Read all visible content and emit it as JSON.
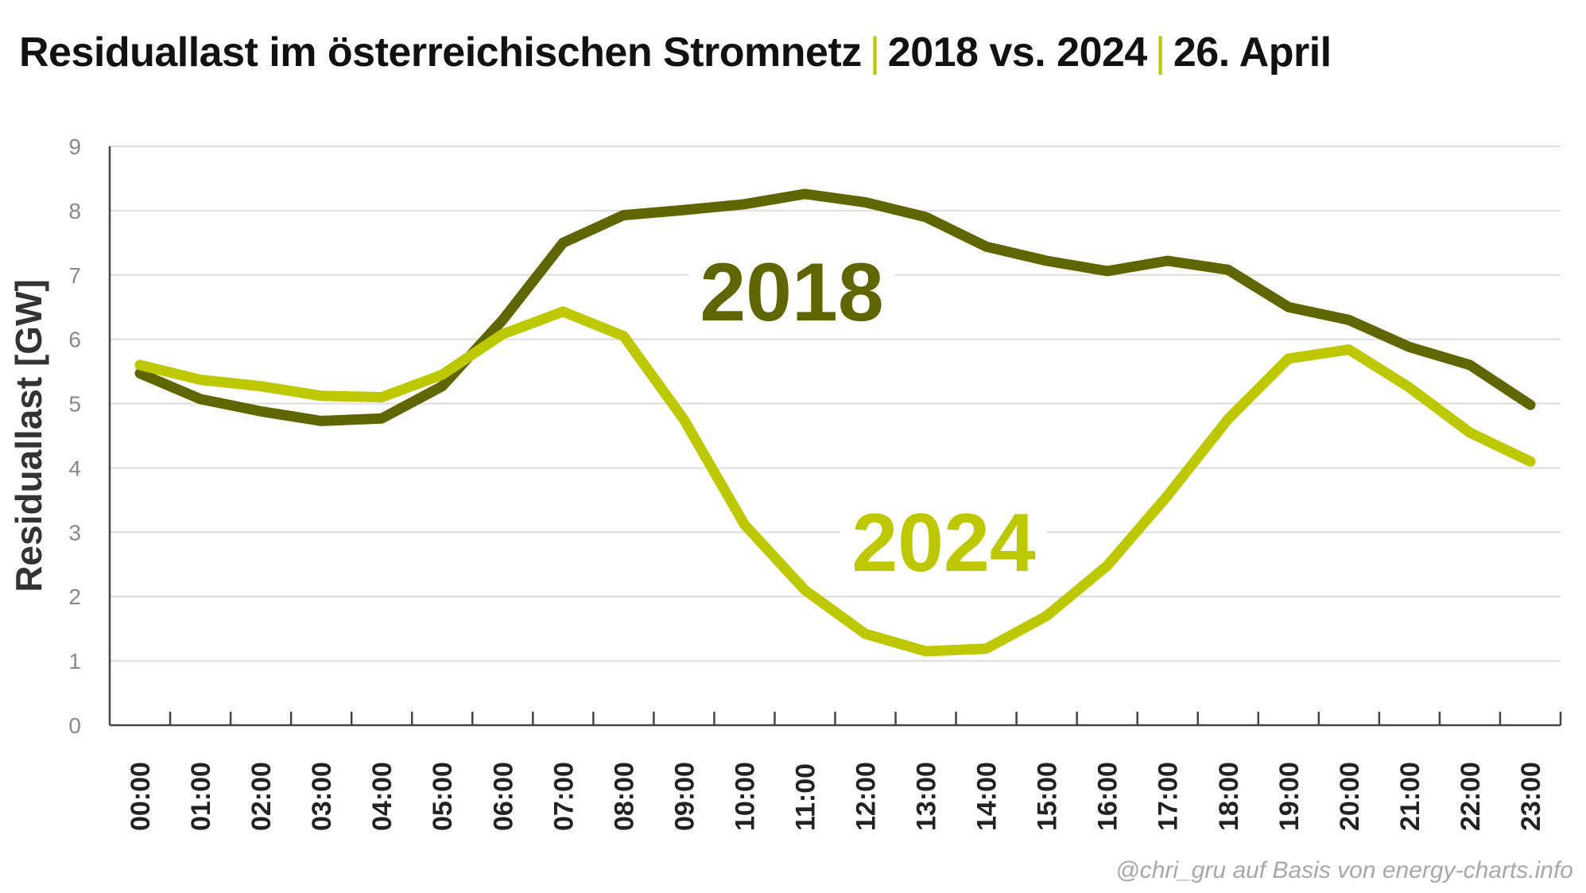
{
  "chart_data": {
    "type": "line",
    "title_parts": [
      "Residuallast im österreichischen Stromnetz",
      "2018 vs. 2024",
      "26. April"
    ],
    "title_separator": "|",
    "ylabel": "Residuallast [GW]",
    "xlabel": "",
    "ylim": [
      0,
      9
    ],
    "yticks": [
      "0",
      "1",
      "2",
      "3",
      "4",
      "5",
      "6",
      "7",
      "8",
      "9"
    ],
    "grid": true,
    "categories": [
      "00:00",
      "01:00",
      "02:00",
      "03:00",
      "04:00",
      "05:00",
      "06:00",
      "07:00",
      "08:00",
      "09:00",
      "10:00",
      "11:00",
      "12:00",
      "13:00",
      "14:00",
      "15:00",
      "16:00",
      "17:00",
      "18:00",
      "19:00",
      "20:00",
      "21:00",
      "22:00",
      "23:00"
    ],
    "series": [
      {
        "name": "2018",
        "color": "#5f6600",
        "values": [
          5.47,
          5.07,
          4.88,
          4.73,
          4.77,
          5.27,
          6.3,
          7.5,
          7.93,
          8.01,
          8.1,
          8.26,
          8.13,
          7.9,
          7.44,
          7.22,
          7.06,
          7.22,
          7.08,
          6.5,
          6.3,
          5.88,
          5.6,
          4.98
        ]
      },
      {
        "name": "2024",
        "color": "#bec800",
        "values": [
          5.6,
          5.37,
          5.27,
          5.12,
          5.1,
          5.45,
          6.08,
          6.43,
          6.05,
          4.75,
          3.12,
          2.1,
          1.42,
          1.15,
          1.19,
          1.7,
          2.48,
          3.57,
          4.76,
          5.7,
          5.84,
          5.25,
          4.55,
          4.1
        ]
      }
    ],
    "annotations": [
      "2018",
      "2024"
    ],
    "credit": "@chri_gru auf Basis von energy-charts.info"
  }
}
